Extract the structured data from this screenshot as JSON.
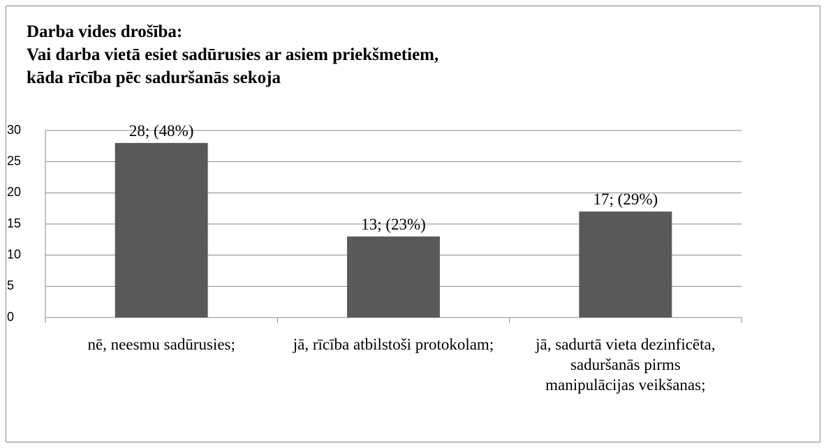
{
  "chart_data": {
    "type": "bar",
    "title": [
      "Darba vides drošība:",
      "Vai darba vietā esiet sadūrusies ar asiem priekšmetiem,",
      "kāda rīcība pēc saduršanās sekoja"
    ],
    "categories": [
      "nē, neesmu sadūrusies;",
      "jā, rīcība atbilstoši protokolam;",
      "jā, sadurtā vieta dezinficēta, saduršanās pirms manipulācijas veikšanas;"
    ],
    "values": [
      28,
      13,
      17
    ],
    "value_labels": [
      "28; (48%)",
      "13; (23%)",
      "17; (29%)"
    ],
    "color": "#595959",
    "ylim": [
      0,
      30
    ],
    "yticks": [
      0,
      5,
      10,
      15,
      20,
      25,
      30
    ],
    "grid": true
  }
}
